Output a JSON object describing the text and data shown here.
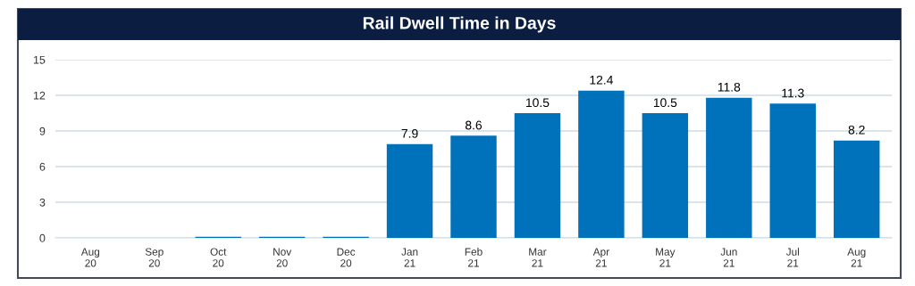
{
  "chart_data": {
    "type": "bar",
    "title": "Rail Dwell Time in Days",
    "categories": [
      "Aug\n20",
      "Sep\n20",
      "Oct\n20",
      "Nov\n20",
      "Dec\n20",
      "Jan\n21",
      "Feb\n21",
      "Mar\n21",
      "Apr\n21",
      "May\n21",
      "Jun\n21",
      "Jul\n21",
      "Aug\n21"
    ],
    "values": [
      0,
      0,
      0.1,
      0.1,
      0.1,
      7.9,
      8.6,
      10.5,
      12.4,
      10.5,
      11.8,
      11.3,
      8.2
    ],
    "value_labels": [
      null,
      null,
      null,
      null,
      null,
      "7.9",
      "8.6",
      "10.5",
      "12.4",
      "10.5",
      "11.8",
      "11.3",
      "8.2"
    ],
    "color": "#0072bc",
    "ylim": [
      0,
      15
    ],
    "yticks": [
      0,
      3,
      6,
      9,
      12,
      15
    ],
    "grid": "y",
    "legend": false
  }
}
